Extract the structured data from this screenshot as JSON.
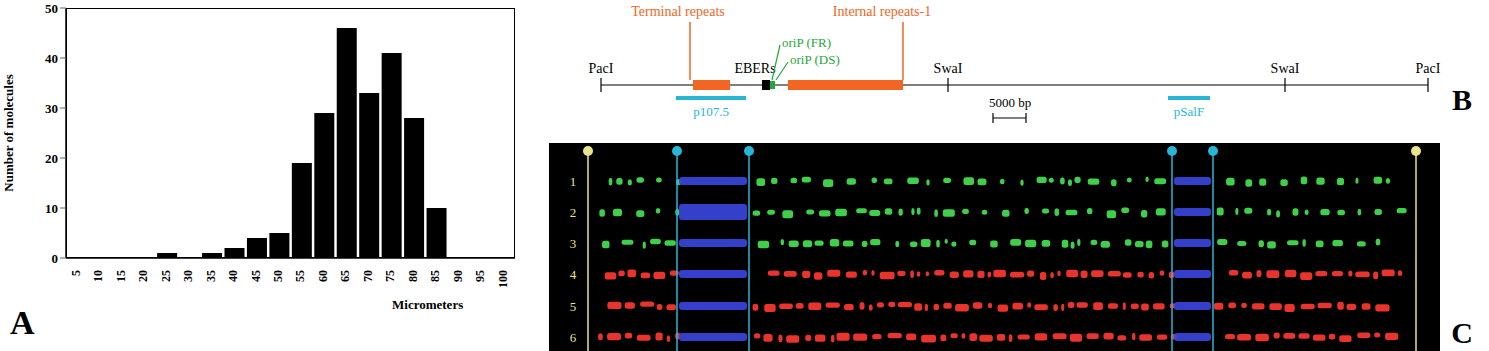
{
  "chart_data": {
    "type": "bar",
    "categories": [
      "5",
      "10",
      "15",
      "20",
      "25",
      "30",
      "35",
      "40",
      "45",
      "50",
      "55",
      "60",
      "65",
      "70",
      "75",
      "80",
      "85",
      "90",
      "95",
      "100"
    ],
    "values": [
      0,
      0,
      0,
      0,
      1,
      0,
      1,
      2,
      4,
      5,
      19,
      29,
      46,
      33,
      41,
      28,
      10,
      0,
      0,
      0
    ],
    "color": "#000000",
    "ylim": [
      0,
      50
    ],
    "yticks": [
      0,
      10,
      20,
      30,
      40,
      50
    ],
    "y_label": "Number of molecules",
    "x_label": "Micrometers",
    "grid": false
  },
  "panel_labels": [
    "A",
    "B",
    "C"
  ],
  "diagram": {
    "sites": [
      "PacI",
      "SwaI",
      "SwaI",
      "PacI"
    ],
    "features": [
      {
        "label": "Terminal repeats",
        "color": "#f26522"
      },
      {
        "label": "EBERs",
        "color": "#000000"
      },
      {
        "label": "oriP (FR)",
        "color": "#22a83a"
      },
      {
        "label": "oriP (DS)",
        "color": "#22a83a"
      },
      {
        "label": "Internal repeats-1",
        "color": "#f26522"
      }
    ],
    "scale_bar": "5000 bp",
    "probes": [
      "p107.5",
      "pSalF"
    ],
    "probe_color": "#29b6d6"
  },
  "image": {
    "lanes": [
      {
        "label": "1",
        "color": "#3fcf4a"
      },
      {
        "label": "2",
        "color": "#3fcf4a"
      },
      {
        "label": "3",
        "color": "#3fcf4a"
      },
      {
        "label": "4",
        "color": "#e8342a"
      },
      {
        "label": "5",
        "color": "#e8342a"
      },
      {
        "label": "6",
        "color": "#e8342a"
      }
    ],
    "probe_signal_color": "#3a46e0",
    "end_marker_color": "#e8e48a"
  }
}
